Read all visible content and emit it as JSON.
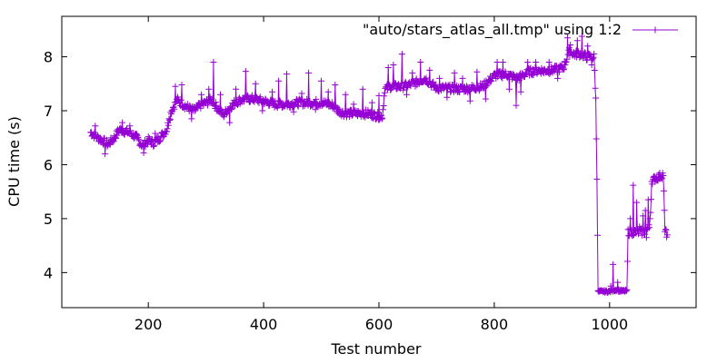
{
  "chart_data": {
    "type": "line",
    "title": "",
    "xlabel": "Test number",
    "ylabel": "CPU time (s)",
    "xlim": [
      50,
      1150
    ],
    "ylim": [
      3.35,
      8.75
    ],
    "xticks": [
      200,
      400,
      600,
      800,
      1000
    ],
    "yticks": [
      4,
      5,
      6,
      7,
      8
    ],
    "grid": false,
    "legend_position": "top-right",
    "marker": "plus",
    "series": [
      {
        "name": "\"auto/stars_atlas_all.tmp\" using 1:2",
        "color": "#9400d3",
        "x_start": 100,
        "x_end": 1100,
        "control_points": [
          [
            100,
            6.6
          ],
          [
            110,
            6.52
          ],
          [
            120,
            6.45
          ],
          [
            130,
            6.38
          ],
          [
            140,
            6.48
          ],
          [
            150,
            6.65
          ],
          [
            160,
            6.62
          ],
          [
            170,
            6.58
          ],
          [
            180,
            6.5
          ],
          [
            190,
            6.35
          ],
          [
            200,
            6.45
          ],
          [
            210,
            6.4
          ],
          [
            220,
            6.5
          ],
          [
            232,
            6.65
          ],
          [
            240,
            7.0
          ],
          [
            250,
            7.2
          ],
          [
            260,
            7.12
          ],
          [
            270,
            7.05
          ],
          [
            280,
            7.0
          ],
          [
            290,
            7.1
          ],
          [
            300,
            7.15
          ],
          [
            310,
            7.2
          ],
          [
            320,
            7.05
          ],
          [
            330,
            6.92
          ],
          [
            340,
            7.05
          ],
          [
            350,
            7.15
          ],
          [
            360,
            7.2
          ],
          [
            370,
            7.22
          ],
          [
            380,
            7.22
          ],
          [
            400,
            7.18
          ],
          [
            420,
            7.12
          ],
          [
            440,
            7.12
          ],
          [
            460,
            7.15
          ],
          [
            480,
            7.15
          ],
          [
            500,
            7.15
          ],
          [
            520,
            7.1
          ],
          [
            530,
            7.0
          ],
          [
            540,
            6.95
          ],
          [
            560,
            6.95
          ],
          [
            580,
            6.95
          ],
          [
            600,
            6.9
          ],
          [
            606,
            6.9
          ],
          [
            610,
            7.4
          ],
          [
            620,
            7.45
          ],
          [
            640,
            7.45
          ],
          [
            660,
            7.5
          ],
          [
            680,
            7.6
          ],
          [
            690,
            7.5
          ],
          [
            700,
            7.42
          ],
          [
            720,
            7.42
          ],
          [
            740,
            7.4
          ],
          [
            760,
            7.42
          ],
          [
            780,
            7.45
          ],
          [
            790,
            7.55
          ],
          [
            800,
            7.65
          ],
          [
            820,
            7.68
          ],
          [
            840,
            7.6
          ],
          [
            860,
            7.72
          ],
          [
            880,
            7.75
          ],
          [
            900,
            7.75
          ],
          [
            920,
            7.8
          ],
          [
            930,
            8.1
          ],
          [
            940,
            8.05
          ],
          [
            950,
            8.05
          ],
          [
            960,
            8.0
          ],
          [
            973,
            8.0
          ],
          [
            976,
            7.2
          ],
          [
            978,
            5.8
          ],
          [
            980,
            3.65
          ],
          [
            1000,
            3.65
          ],
          [
            1010,
            3.68
          ],
          [
            1020,
            3.66
          ],
          [
            1030,
            3.66
          ],
          [
            1032,
            4.75
          ],
          [
            1040,
            4.75
          ],
          [
            1060,
            4.75
          ],
          [
            1070,
            4.85
          ],
          [
            1073,
            5.7
          ],
          [
            1080,
            5.75
          ],
          [
            1090,
            5.8
          ],
          [
            1093,
            5.83
          ],
          [
            1096,
            4.75
          ],
          [
            1100,
            4.7
          ]
        ],
        "spikes": [
          [
            108,
            6.72
          ],
          [
            125,
            6.2
          ],
          [
            155,
            6.78
          ],
          [
            168,
            6.72
          ],
          [
            192,
            6.22
          ],
          [
            212,
            6.58
          ],
          [
            236,
            6.85
          ],
          [
            247,
            7.45
          ],
          [
            258,
            7.48
          ],
          [
            275,
            6.85
          ],
          [
            292,
            7.3
          ],
          [
            305,
            7.4
          ],
          [
            313,
            7.9
          ],
          [
            325,
            7.3
          ],
          [
            341,
            6.78
          ],
          [
            352,
            7.4
          ],
          [
            369,
            7.73
          ],
          [
            386,
            7.5
          ],
          [
            398,
            7.0
          ],
          [
            415,
            7.35
          ],
          [
            426,
            7.55
          ],
          [
            440,
            7.68
          ],
          [
            452,
            6.98
          ],
          [
            466,
            7.32
          ],
          [
            478,
            7.7
          ],
          [
            490,
            7.02
          ],
          [
            500,
            7.55
          ],
          [
            512,
            7.35
          ],
          [
            524,
            7.48
          ],
          [
            542,
            7.3
          ],
          [
            556,
            7.12
          ],
          [
            572,
            7.4
          ],
          [
            588,
            7.15
          ],
          [
            600,
            7.28
          ],
          [
            616,
            7.8
          ],
          [
            625,
            7.85
          ],
          [
            640,
            8.05
          ],
          [
            648,
            7.3
          ],
          [
            658,
            7.7
          ],
          [
            672,
            7.9
          ],
          [
            688,
            7.75
          ],
          [
            705,
            7.6
          ],
          [
            718,
            7.25
          ],
          [
            731,
            7.7
          ],
          [
            745,
            7.6
          ],
          [
            758,
            7.18
          ],
          [
            770,
            7.72
          ],
          [
            785,
            7.22
          ],
          [
            798,
            7.65
          ],
          [
            805,
            7.9
          ],
          [
            815,
            7.9
          ],
          [
            826,
            7.4
          ],
          [
            838,
            7.1
          ],
          [
            846,
            7.35
          ],
          [
            858,
            7.9
          ],
          [
            872,
            7.9
          ],
          [
            886,
            7.7
          ],
          [
            895,
            7.9
          ],
          [
            910,
            7.6
          ],
          [
            927,
            8.35
          ],
          [
            932,
            8.22
          ],
          [
            944,
            8.3
          ],
          [
            952,
            8.38
          ],
          [
            962,
            8.2
          ],
          [
            969,
            7.85
          ],
          [
            1002,
            3.75
          ],
          [
            1006,
            4.15
          ],
          [
            1014,
            3.82
          ],
          [
            1036,
            5.0
          ],
          [
            1041,
            5.62
          ],
          [
            1047,
            5.3
          ],
          [
            1052,
            4.85
          ],
          [
            1058,
            5.05
          ],
          [
            1062,
            5.15
          ],
          [
            1064,
            4.65
          ],
          [
            1067,
            5.35
          ],
          [
            1070,
            5.0
          ],
          [
            1097,
            4.8
          ]
        ]
      }
    ]
  }
}
